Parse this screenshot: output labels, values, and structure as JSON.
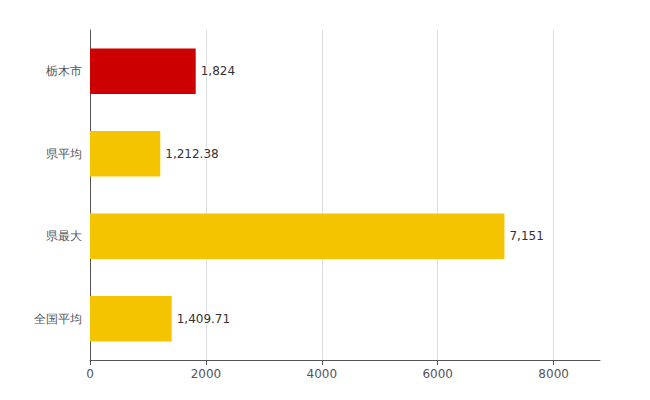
{
  "chart_data": {
    "type": "bar",
    "orientation": "horizontal",
    "categories": [
      "全国平均",
      "県最大",
      "県平均",
      "栃木市"
    ],
    "values": [
      1409.71,
      7151,
      1212.38,
      1824
    ],
    "value_labels": [
      "1,409.71",
      "7,151",
      "1,212.38",
      "1,824"
    ],
    "colors": [
      "#f5c400",
      "#f5c400",
      "#f5c400",
      "#cc0000"
    ],
    "xlim": [
      0,
      8800
    ],
    "xticks": [
      0,
      2000,
      4000,
      6000,
      8000
    ],
    "grid": true,
    "data_labels": true
  }
}
